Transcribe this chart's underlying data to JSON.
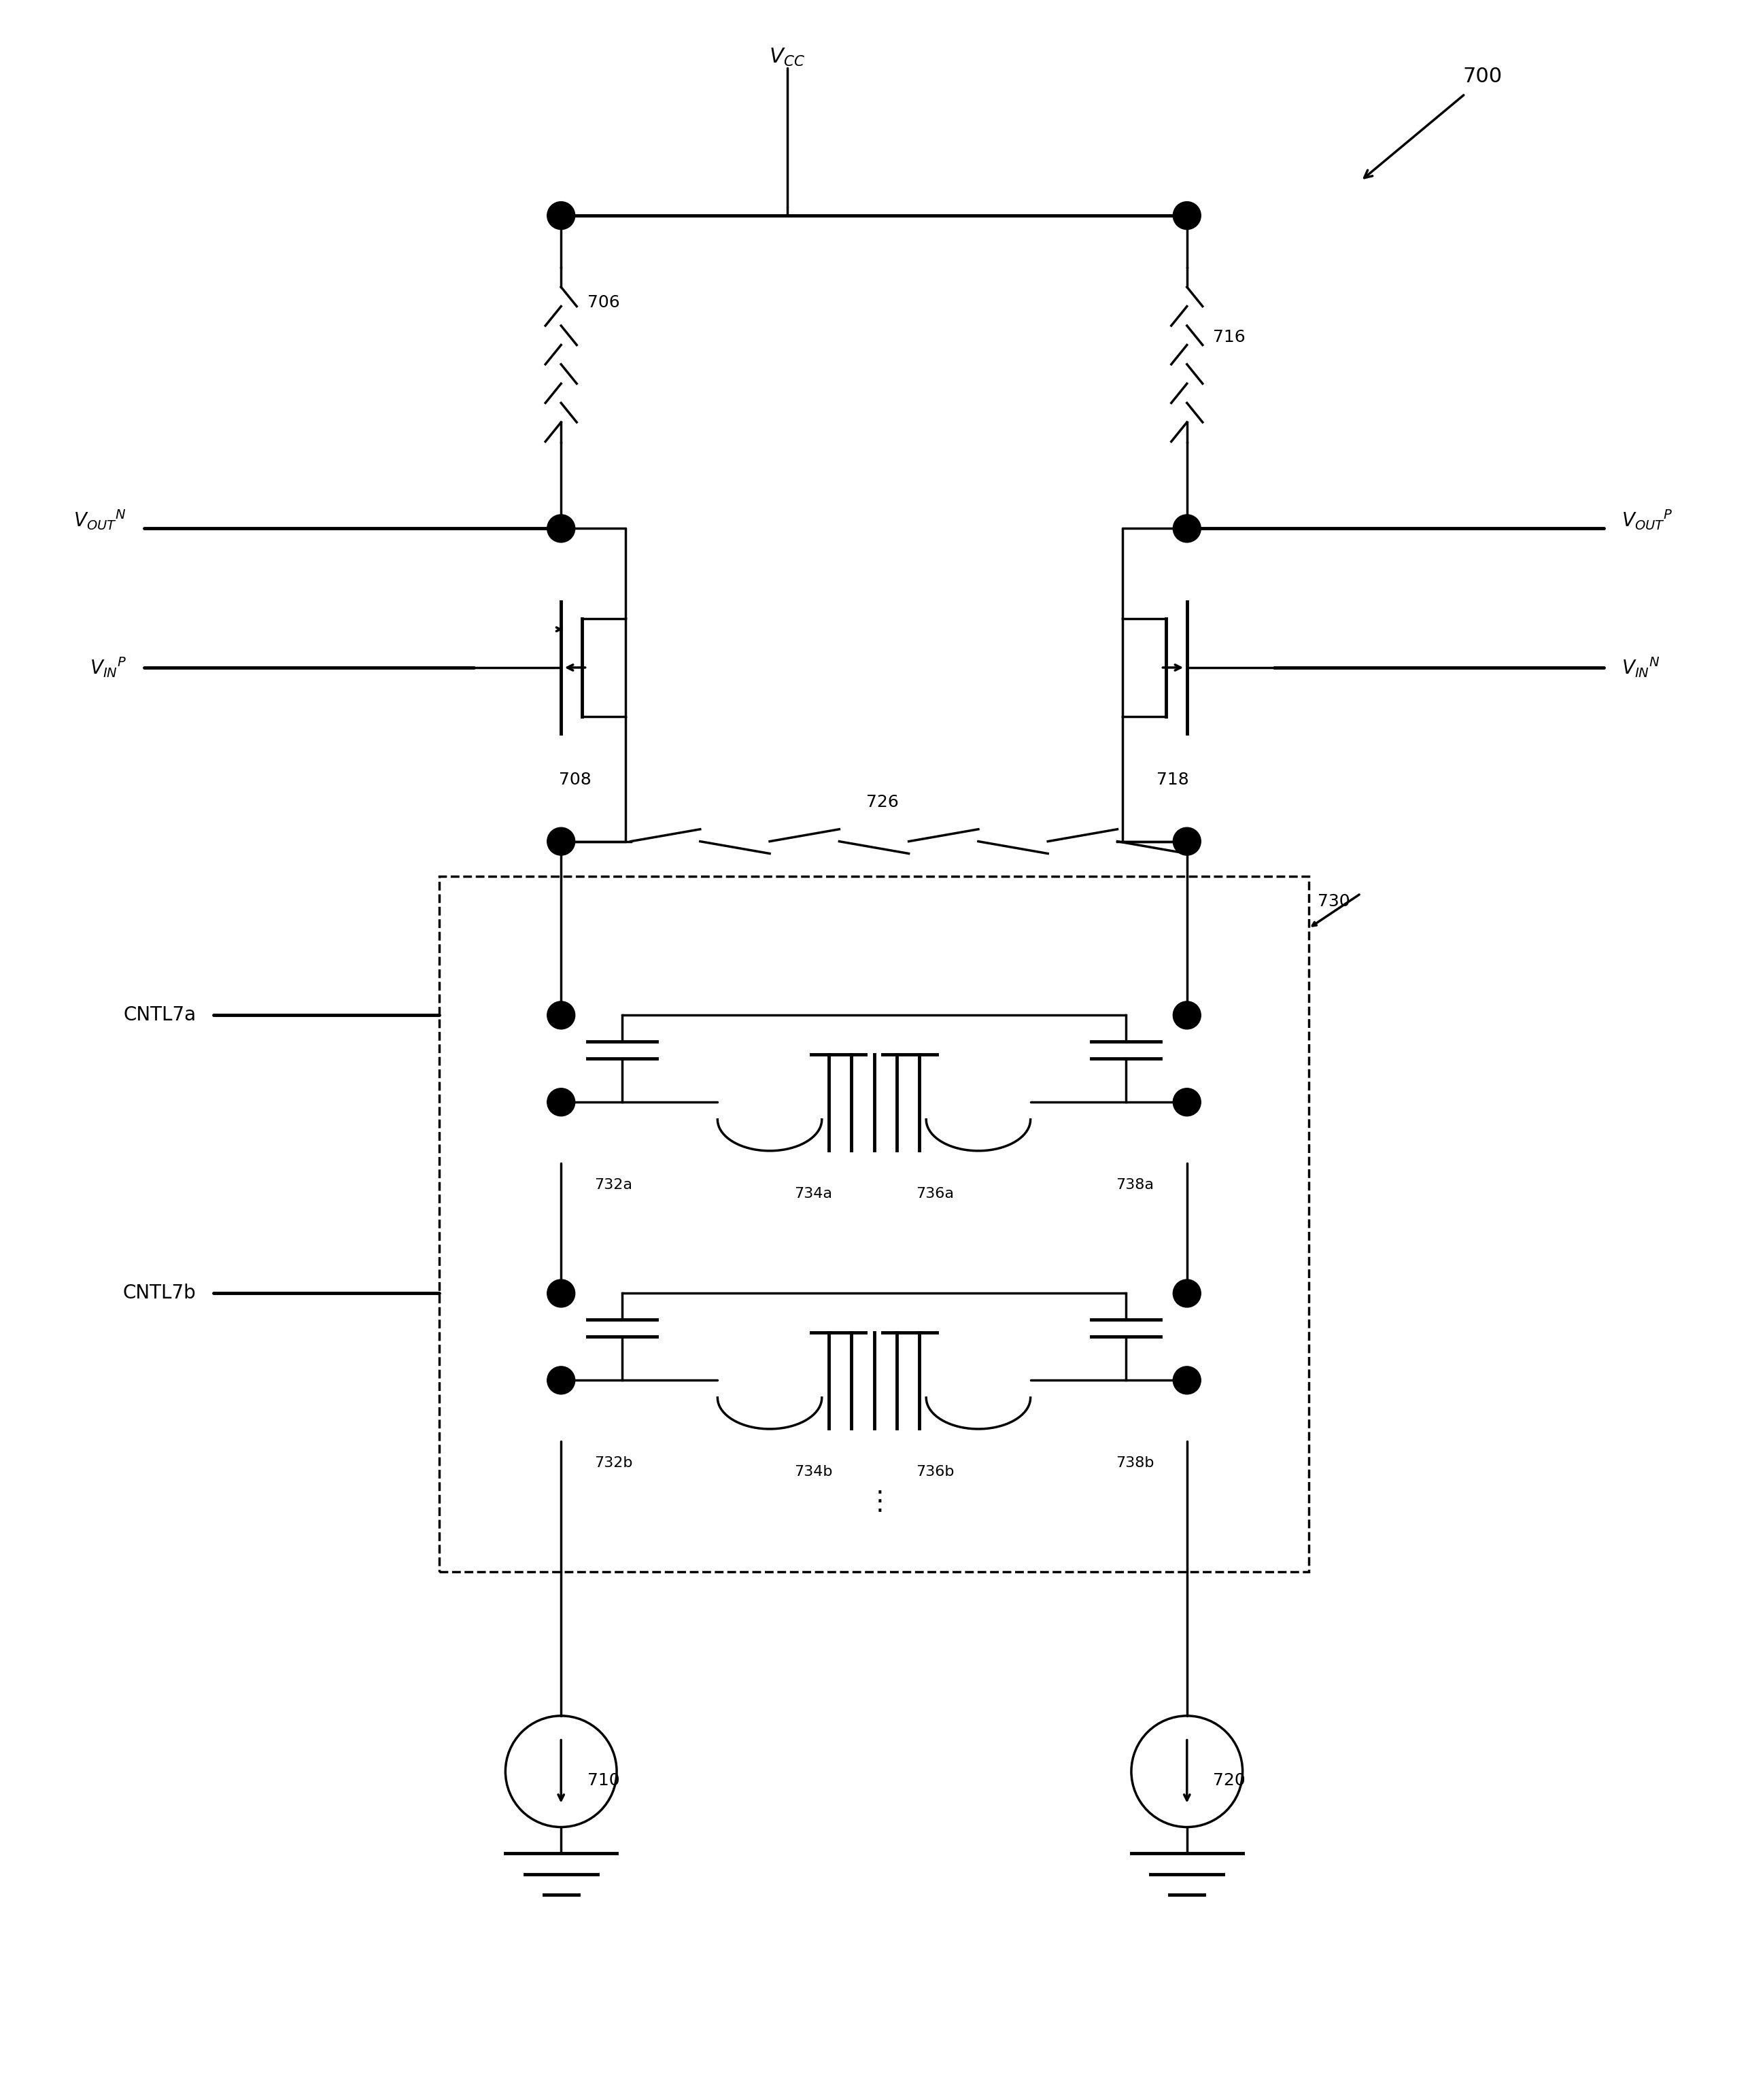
{
  "fig_width": 25.71,
  "fig_height": 30.89,
  "bg_color": "#ffffff",
  "line_color": "#000000",
  "lw": 2.5,
  "lw_thick": 3.5,
  "title": "700",
  "vcc_label": "V$_{CC}$",
  "vout_n_label": "V$_{OUT}$$^{N}$",
  "vout_p_label": "V$_{OUT}$$^{P}$",
  "vin_p_label": "V$_{IN}$$^{P}$",
  "vin_n_label": "V$_{IN}$$^{N}$",
  "cntl7a_label": "CNTL7a",
  "cntl7b_label": "CNTL7b",
  "label_706": "706",
  "label_708": "708",
  "label_710": "710",
  "label_716": "716",
  "label_718": "718",
  "label_720": "720",
  "label_726": "726",
  "label_730": "730",
  "label_732a": "732a",
  "label_734a": "734a",
  "label_736a": "736a",
  "label_738a": "738a",
  "label_732b": "732b",
  "label_734b": "734b",
  "label_736b": "736b",
  "label_738b": "738b"
}
